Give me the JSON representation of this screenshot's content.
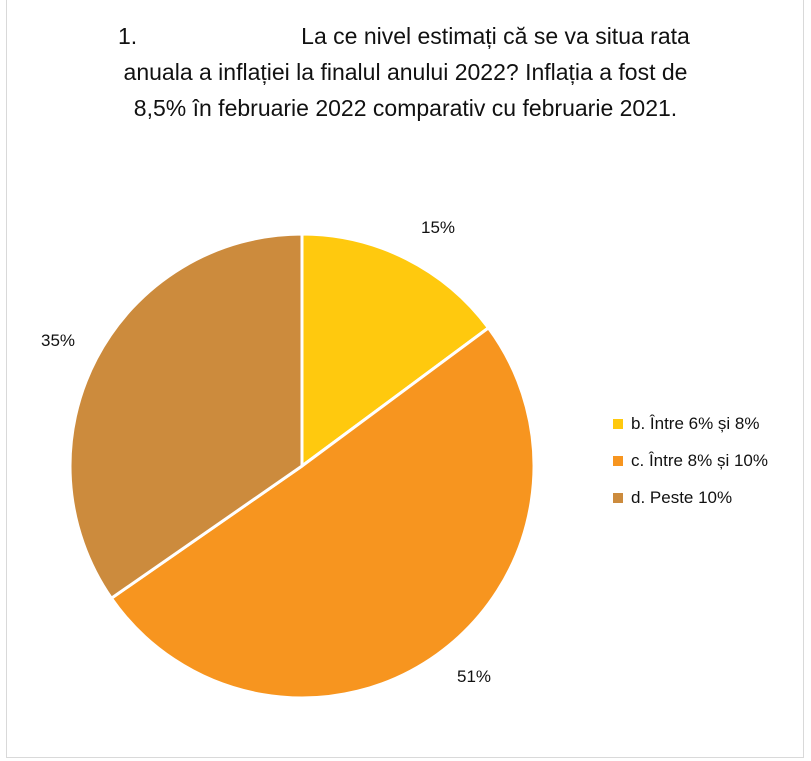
{
  "title": {
    "number": "1.",
    "line1": "La ce nivel estimați că se va situa rata",
    "line2": "anuala a inflației la finalul anului 2022? Inflația a fost de",
    "line3": "8,5% în februarie 2022 comparativ cu februarie 2021."
  },
  "chart_data": {
    "type": "pie",
    "title": "La ce nivel estimați că se va situa rata anuala a inflației la finalul anului 2022? Inflația a fost de 8,5% în februarie 2022 comparativ cu februarie 2021.",
    "categories": [
      "b. Între 6% și 8%",
      "c. Între 8% și 10%",
      "d. Peste 10%"
    ],
    "values": [
      15,
      51,
      35
    ],
    "data_labels": [
      "15%",
      "51%",
      "35%"
    ],
    "colors": [
      "#FFC90E",
      "#F7951F",
      "#CC8B3D"
    ],
    "legend_position": "right"
  }
}
